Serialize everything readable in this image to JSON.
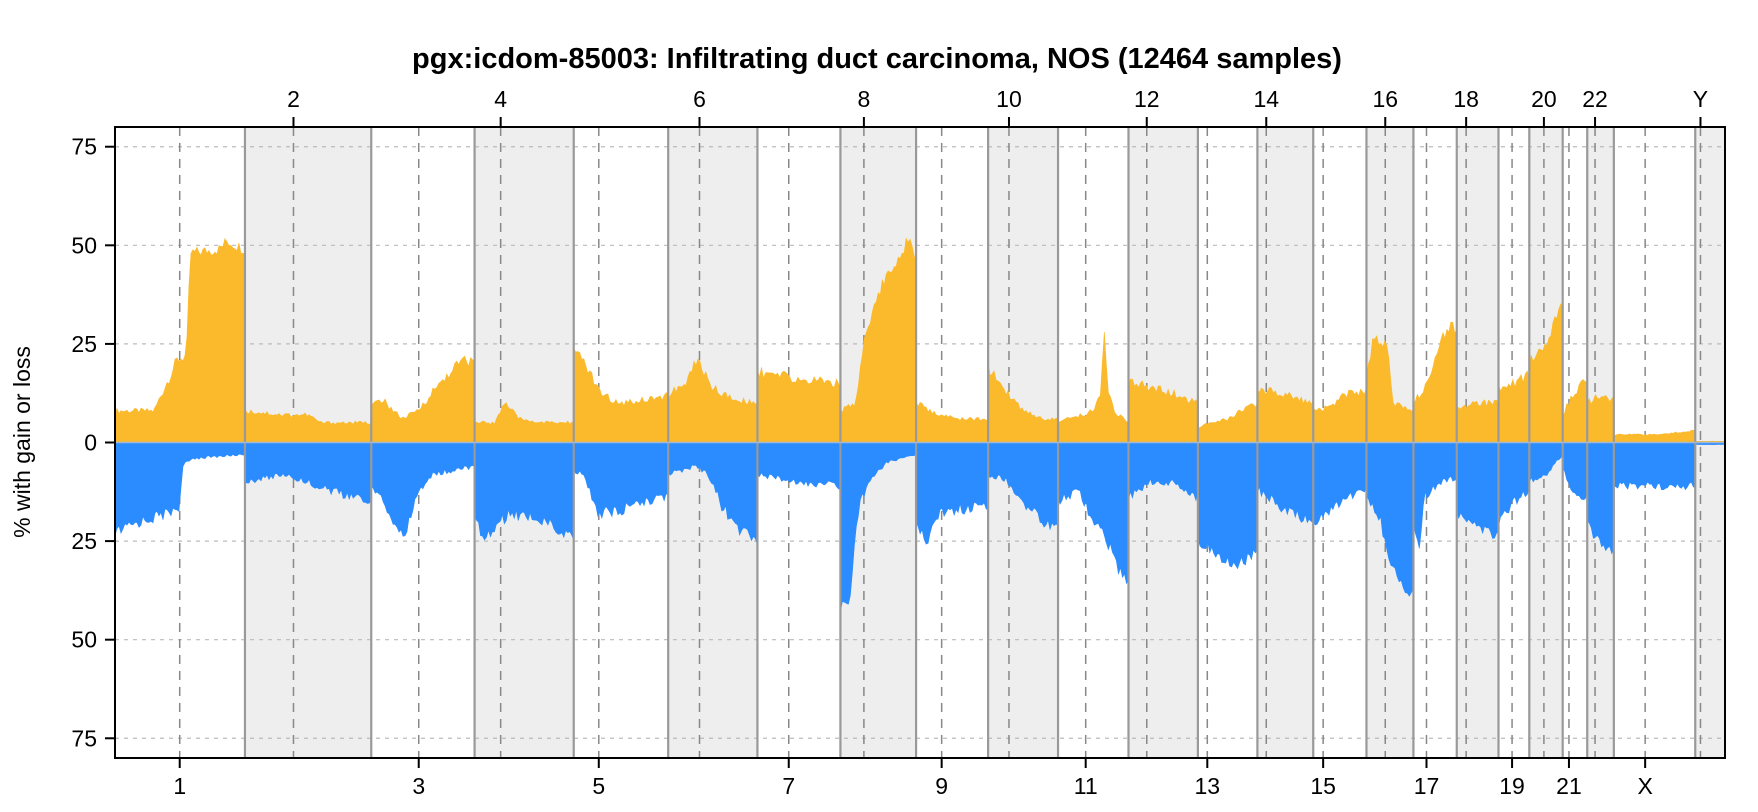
{
  "chart_data": {
    "type": "area",
    "title": "pgx:icdom-85003: Infiltrating duct carcinoma, NOS (12464 samples)",
    "ylabel": "% with gain or loss",
    "ylim": [
      -80,
      80
    ],
    "y_ticks": [
      75,
      50,
      25,
      0,
      25,
      50,
      75
    ],
    "y_tick_values": [
      75,
      50,
      25,
      0,
      -25,
      -50,
      -75
    ],
    "grid": true,
    "colors": {
      "gain": "#FBB92C",
      "loss": "#2B8CFF",
      "shade": "#EEEEEE",
      "grid": "#BBBBBB",
      "divider": "#999999"
    },
    "chromosomes": [
      "1",
      "2",
      "3",
      "4",
      "5",
      "6",
      "7",
      "8",
      "9",
      "10",
      "11",
      "12",
      "13",
      "14",
      "15",
      "16",
      "17",
      "18",
      "19",
      "20",
      "21",
      "22",
      "X",
      "Y"
    ],
    "chromosome_lengths_mb": [
      249,
      242,
      198,
      190,
      181,
      171,
      159,
      145,
      138,
      134,
      135,
      133,
      114,
      107,
      102,
      90,
      83,
      80,
      59,
      64,
      47,
      51,
      156,
      57
    ],
    "centromeres_mb": [
      124,
      93,
      91,
      50,
      48,
      60,
      60,
      45,
      49,
      40,
      53,
      35,
      18,
      17,
      19,
      36,
      25,
      18,
      26,
      28,
      12,
      15,
      60,
      10
    ],
    "top_labels": [
      "2",
      "4",
      "6",
      "8",
      "10",
      "12",
      "14",
      "16",
      "18",
      "20",
      "22",
      "Y"
    ],
    "bottom_labels": [
      "1",
      "3",
      "5",
      "7",
      "9",
      "11",
      "13",
      "15",
      "17",
      "19",
      "21",
      "X"
    ],
    "series": [
      {
        "name": "gain",
        "profiles": [
          [
            [
              0,
              8
            ],
            [
              0.3,
              8
            ],
            [
              0.48,
              21
            ],
            [
              0.55,
              22
            ],
            [
              0.58,
              48
            ],
            [
              0.8,
              49
            ],
            [
              0.86,
              51
            ],
            [
              1,
              49
            ]
          ],
          [
            [
              0,
              8
            ],
            [
              0.3,
              7
            ],
            [
              0.5,
              7
            ],
            [
              0.6,
              5
            ],
            [
              0.8,
              5
            ],
            [
              1,
              5
            ]
          ],
          [
            [
              0,
              9
            ],
            [
              0.1,
              11
            ],
            [
              0.3,
              6
            ],
            [
              0.45,
              8
            ],
            [
              0.6,
              13
            ],
            [
              0.8,
              19
            ],
            [
              0.9,
              21
            ],
            [
              1,
              20
            ]
          ],
          [
            [
              0,
              5
            ],
            [
              0.2,
              5
            ],
            [
              0.3,
              10
            ],
            [
              0.45,
              6
            ],
            [
              0.7,
              5
            ],
            [
              1,
              5
            ]
          ],
          [
            [
              0,
              23
            ],
            [
              0.12,
              20
            ],
            [
              0.3,
              12
            ],
            [
              0.5,
              10
            ],
            [
              0.75,
              11
            ],
            [
              1,
              12
            ]
          ],
          [
            [
              0,
              12
            ],
            [
              0.2,
              15
            ],
            [
              0.32,
              21
            ],
            [
              0.5,
              14
            ],
            [
              0.7,
              11
            ],
            [
              1,
              10
            ]
          ],
          [
            [
              0,
              18
            ],
            [
              0.5,
              16
            ],
            [
              1,
              15
            ]
          ],
          [
            [
              0,
              8
            ],
            [
              0.2,
              10
            ],
            [
              0.3,
              25
            ],
            [
              0.45,
              35
            ],
            [
              0.6,
              42
            ],
            [
              0.8,
              48
            ],
            [
              0.92,
              52
            ],
            [
              1,
              46
            ]
          ],
          [
            [
              0,
              10
            ],
            [
              0.3,
              7
            ],
            [
              0.6,
              6
            ],
            [
              1,
              6
            ]
          ],
          [
            [
              0,
              19
            ],
            [
              0.3,
              12
            ],
            [
              0.5,
              8
            ],
            [
              0.8,
              6
            ],
            [
              1,
              6
            ]
          ],
          [
            [
              0,
              5
            ],
            [
              0.5,
              8
            ],
            [
              0.6,
              12
            ],
            [
              0.66,
              28
            ],
            [
              0.7,
              14
            ],
            [
              0.8,
              8
            ],
            [
              1,
              5
            ]
          ],
          [
            [
              0,
              15
            ],
            [
              0.4,
              14
            ],
            [
              1,
              10
            ]
          ],
          [
            [
              0,
              4
            ],
            [
              0.5,
              6
            ],
            [
              1,
              10
            ]
          ],
          [
            [
              0,
              14
            ],
            [
              0.5,
              12
            ],
            [
              1,
              10
            ]
          ],
          [
            [
              0,
              8
            ],
            [
              0.3,
              9
            ],
            [
              0.6,
              12
            ],
            [
              1,
              13
            ]
          ],
          [
            [
              0,
              16
            ],
            [
              0.15,
              27
            ],
            [
              0.45,
              25
            ],
            [
              0.55,
              10
            ],
            [
              1,
              8
            ]
          ],
          [
            [
              0,
              10
            ],
            [
              0.4,
              16
            ],
            [
              0.6,
              25
            ],
            [
              0.85,
              30
            ],
            [
              1,
              28
            ]
          ],
          [
            [
              0,
              9
            ],
            [
              0.5,
              10
            ],
            [
              1,
              10
            ]
          ],
          [
            [
              0,
              14
            ],
            [
              0.5,
              15
            ],
            [
              1,
              17
            ]
          ],
          [
            [
              0,
              20
            ],
            [
              0.5,
              25
            ],
            [
              0.85,
              33
            ],
            [
              1,
              35
            ]
          ],
          [
            [
              0,
              7
            ],
            [
              0.4,
              12
            ],
            [
              0.8,
              15
            ],
            [
              1,
              17
            ]
          ],
          [
            [
              0,
              10
            ],
            [
              0.5,
              12
            ],
            [
              1,
              11
            ]
          ],
          [
            [
              0,
              2
            ],
            [
              0.5,
              2
            ],
            [
              1,
              3
            ]
          ],
          [
            [
              0,
              0.3
            ],
            [
              1,
              0.3
            ]
          ]
        ]
      },
      {
        "name": "loss",
        "profiles": [
          [
            [
              0,
              23
            ],
            [
              0.2,
              20
            ],
            [
              0.4,
              18
            ],
            [
              0.5,
              16
            ],
            [
              0.52,
              6
            ],
            [
              0.6,
              4
            ],
            [
              1,
              3
            ]
          ],
          [
            [
              0,
              10
            ],
            [
              0.3,
              8
            ],
            [
              0.5,
              10
            ],
            [
              0.75,
              13
            ],
            [
              1,
              15
            ]
          ],
          [
            [
              0,
              12
            ],
            [
              0.1,
              14
            ],
            [
              0.2,
              20
            ],
            [
              0.32,
              24
            ],
            [
              0.45,
              13
            ],
            [
              0.6,
              8
            ],
            [
              1,
              6
            ]
          ],
          [
            [
              0,
              20
            ],
            [
              0.1,
              24
            ],
            [
              0.35,
              18
            ],
            [
              0.7,
              20
            ],
            [
              1,
              24
            ]
          ],
          [
            [
              0,
              7
            ],
            [
              0.1,
              8
            ],
            [
              0.25,
              18
            ],
            [
              0.5,
              17
            ],
            [
              0.8,
              15
            ],
            [
              1,
              14
            ]
          ],
          [
            [
              0,
              8
            ],
            [
              0.3,
              6
            ],
            [
              0.45,
              8
            ],
            [
              0.6,
              16
            ],
            [
              0.8,
              22
            ],
            [
              1,
              25
            ]
          ],
          [
            [
              0,
              8
            ],
            [
              0.5,
              10
            ],
            [
              1,
              11
            ]
          ],
          [
            [
              0,
              42
            ],
            [
              0.12,
              40
            ],
            [
              0.25,
              15
            ],
            [
              0.4,
              10
            ],
            [
              0.6,
              5
            ],
            [
              1,
              3
            ]
          ],
          [
            [
              0,
              20
            ],
            [
              0.15,
              25
            ],
            [
              0.3,
              18
            ],
            [
              0.6,
              17
            ],
            [
              1,
              16
            ]
          ],
          [
            [
              0,
              8
            ],
            [
              0.3,
              10
            ],
            [
              0.5,
              15
            ],
            [
              0.8,
              20
            ],
            [
              1,
              22
            ]
          ],
          [
            [
              0,
              15
            ],
            [
              0.3,
              12
            ],
            [
              0.5,
              20
            ],
            [
              0.7,
              25
            ],
            [
              0.85,
              32
            ],
            [
              1,
              35
            ]
          ],
          [
            [
              0,
              14
            ],
            [
              0.3,
              10
            ],
            [
              0.6,
              10
            ],
            [
              1,
              14
            ]
          ],
          [
            [
              0,
              25
            ],
            [
              0.3,
              28
            ],
            [
              0.6,
              31
            ],
            [
              0.8,
              30
            ],
            [
              1,
              27
            ]
          ],
          [
            [
              0,
              12
            ],
            [
              0.3,
              15
            ],
            [
              0.6,
              18
            ],
            [
              1,
              20
            ]
          ],
          [
            [
              0,
              20
            ],
            [
              0.3,
              18
            ],
            [
              0.6,
              14
            ],
            [
              1,
              12
            ]
          ],
          [
            [
              0,
              13
            ],
            [
              0.3,
              20
            ],
            [
              0.5,
              30
            ],
            [
              0.7,
              35
            ],
            [
              0.9,
              38
            ],
            [
              1,
              36
            ]
          ],
          [
            [
              0,
              22
            ],
            [
              0.15,
              27
            ],
            [
              0.25,
              14
            ],
            [
              0.6,
              10
            ],
            [
              1,
              9
            ]
          ],
          [
            [
              0,
              18
            ],
            [
              0.3,
              20
            ],
            [
              0.7,
              22
            ],
            [
              1,
              24
            ]
          ],
          [
            [
              0,
              20
            ],
            [
              0.5,
              15
            ],
            [
              1,
              12
            ]
          ],
          [
            [
              0,
              10
            ],
            [
              0.5,
              8
            ],
            [
              1,
              3
            ]
          ],
          [
            [
              0,
              6
            ],
            [
              0.3,
              12
            ],
            [
              0.7,
              14
            ],
            [
              1,
              13
            ]
          ],
          [
            [
              0,
              20
            ],
            [
              0.4,
              25
            ],
            [
              0.7,
              27
            ],
            [
              1,
              28
            ]
          ],
          [
            [
              0,
              11
            ],
            [
              0.5,
              11
            ],
            [
              1,
              11
            ]
          ],
          [
            [
              0,
              0.5
            ],
            [
              1,
              0.5
            ]
          ]
        ]
      }
    ]
  }
}
